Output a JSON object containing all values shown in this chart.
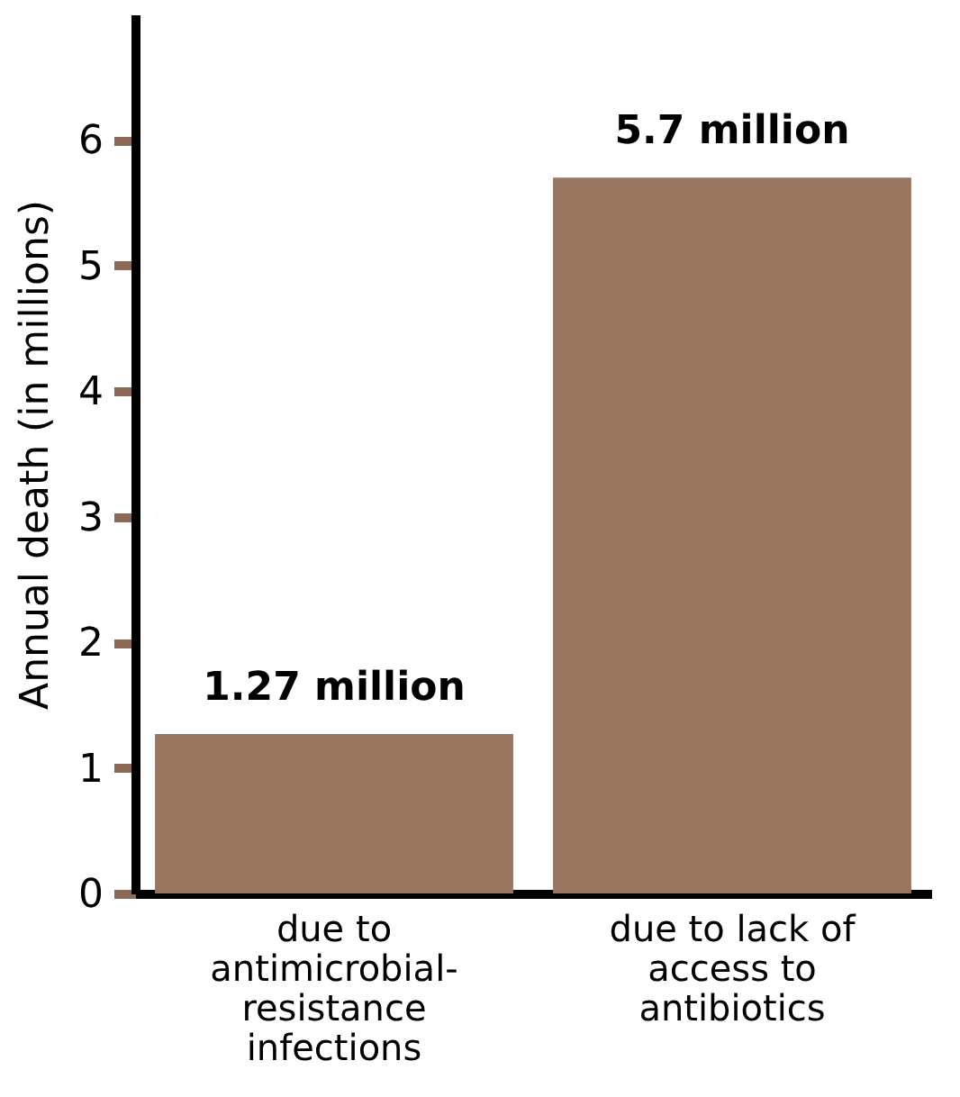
{
  "chart_data": {
    "type": "bar",
    "ylabel": "Annual death (in millions)",
    "categories": [
      "due to antimicrobial-resistance infections",
      "due to lack of access to antibiotics"
    ],
    "values": [
      1.27,
      5.7
    ],
    "value_labels": [
      "1.27 million",
      "5.7 million"
    ],
    "color": "#9a7560",
    "ylim": [
      0,
      7
    ],
    "yticks": [
      0,
      1,
      2,
      3,
      4,
      5,
      6
    ],
    "grid": false
  }
}
